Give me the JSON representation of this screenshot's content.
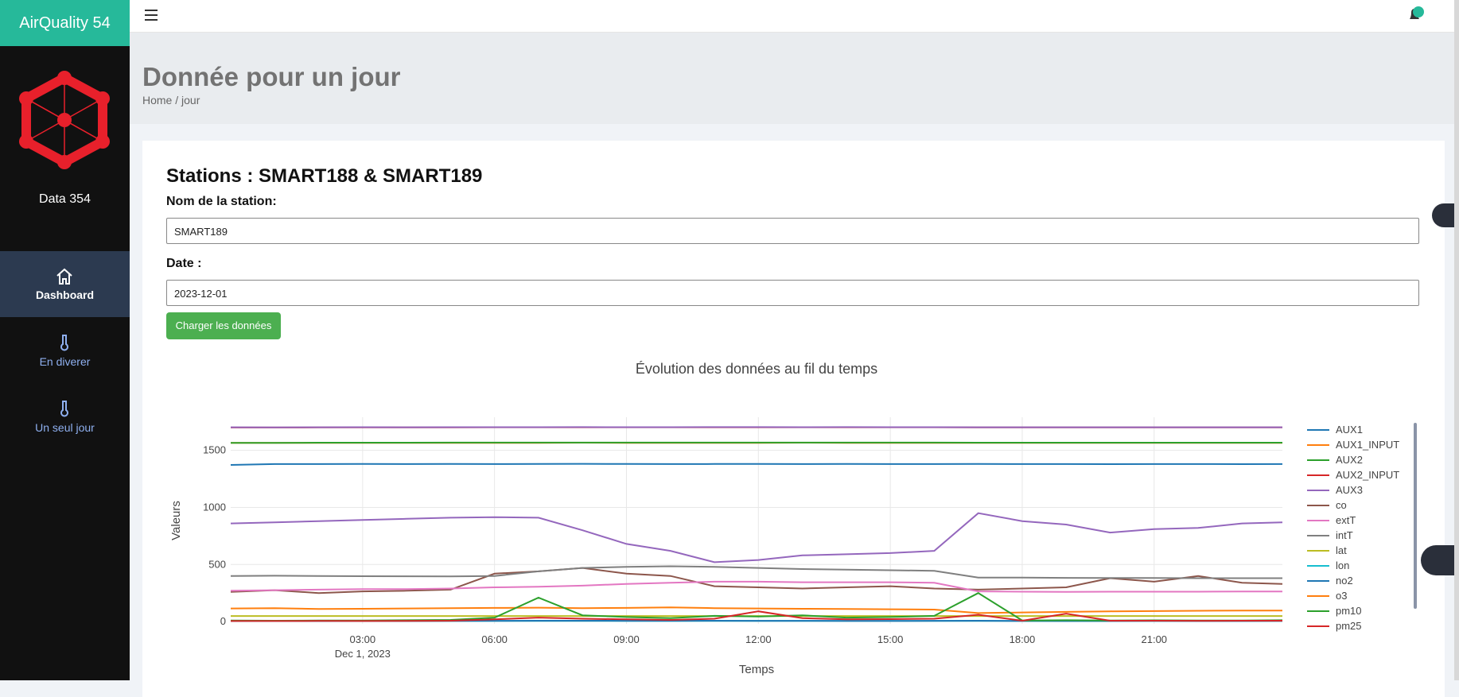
{
  "brand": "AirQuality 54",
  "sidebar": {
    "label": "Data 354",
    "nav": [
      "Dashboard",
      "En diverer",
      "Un seul jour"
    ]
  },
  "header": {
    "title": "Donnée pour un jour",
    "breadcrumb": "Home / jour"
  },
  "form": {
    "heading": "Stations : SMART188 & SMART189",
    "station_label": "Nom de la station:",
    "station_value": "SMART189",
    "date_label": "Date :",
    "date_value": "2023-12-01",
    "button": "Charger les données"
  },
  "chart_data": {
    "type": "line",
    "title": "Évolution des données au fil du temps",
    "x_label": "Temps",
    "y_label": "Valeurs",
    "grid": true,
    "legend": "right",
    "x": [
      "2023-12-01 00:00",
      "2023-12-01 01:00",
      "2023-12-01 02:00",
      "2023-12-01 03:00",
      "2023-12-01 04:00",
      "2023-12-01 05:00",
      "2023-12-01 06:00",
      "2023-12-01 07:00",
      "2023-12-01 08:00",
      "2023-12-01 09:00",
      "2023-12-01 10:00",
      "2023-12-01 11:00",
      "2023-12-01 12:00",
      "2023-12-01 13:00",
      "2023-12-01 14:00",
      "2023-12-01 15:00",
      "2023-12-01 16:00",
      "2023-12-01 17:00",
      "2023-12-01 18:00",
      "2023-12-01 19:00",
      "2023-12-01 20:00",
      "2023-12-01 21:00",
      "2023-12-01 22:00",
      "2023-12-01 23:00",
      "2023-12-01 23:55"
    ],
    "xlim": [
      "2023-12-01 00:00",
      "2023-12-01 23:55"
    ],
    "xticks": [
      {
        "value": "2023-12-01 03:00",
        "label": "03:00"
      },
      {
        "value": "2023-12-01 06:00",
        "label": "06:00"
      },
      {
        "value": "2023-12-01 09:00",
        "label": "09:00"
      },
      {
        "value": "2023-12-01 12:00",
        "label": "12:00"
      },
      {
        "value": "2023-12-01 15:00",
        "label": "15:00"
      },
      {
        "value": "2023-12-01 18:00",
        "label": "18:00"
      },
      {
        "value": "2023-12-01 21:00",
        "label": "21:00"
      }
    ],
    "xtick_date": "Dec 1, 2023",
    "ylim": [
      -20,
      1790
    ],
    "yticks": [
      0,
      500,
      1000,
      1500
    ],
    "series": [
      {
        "name": "AUX1",
        "color": "#1f77b4",
        "values": [
          1372,
          1380,
          1380,
          1381,
          1380,
          1381,
          1380,
          1381,
          1382,
          1381,
          1380,
          1381,
          1381,
          1380,
          1381,
          1380,
          1380,
          1381,
          1380,
          1380,
          1379,
          1380,
          1380,
          1379,
          1380
        ]
      },
      {
        "name": "AUX1_INPUT",
        "color": "#ff7f0e",
        "values": [
          1565,
          1565,
          1566,
          1566,
          1565,
          1566,
          1566,
          1566,
          1567,
          1566,
          1566,
          1566,
          1566,
          1567,
          1566,
          1566,
          1566,
          1566,
          1565,
          1566,
          1566,
          1565,
          1566,
          1566,
          1565
        ]
      },
      {
        "name": "AUX2",
        "color": "#2ca02c",
        "values": [
          1566,
          1566,
          1567,
          1567,
          1567,
          1568,
          1568,
          1568,
          1568,
          1568,
          1568,
          1568,
          1568,
          1568,
          1568,
          1568,
          1568,
          1567,
          1567,
          1567,
          1567,
          1567,
          1567,
          1567,
          1567
        ]
      },
      {
        "name": "AUX2_INPUT",
        "color": "#d62728",
        "values": [
          1700,
          1700,
          1701,
          1701,
          1701,
          1701,
          1702,
          1702,
          1702,
          1702,
          1702,
          1702,
          1702,
          1702,
          1702,
          1702,
          1702,
          1701,
          1701,
          1701,
          1701,
          1701,
          1701,
          1701,
          1701
        ]
      },
      {
        "name": "AUX3",
        "color": "#9467bd",
        "values": [
          1702,
          1701,
          1702,
          1703,
          1702,
          1703,
          1703,
          1703,
          1704,
          1703,
          1703,
          1704,
          1704,
          1703,
          1704,
          1703,
          1703,
          1702,
          1702,
          1702,
          1702,
          1702,
          1702,
          1702,
          1702
        ]
      },
      {
        "name": "co",
        "color": "#8c564b",
        "values": [
          260,
          275,
          250,
          265,
          270,
          280,
          420,
          440,
          470,
          420,
          400,
          310,
          300,
          290,
          300,
          310,
          290,
          280,
          290,
          300,
          380,
          350,
          400,
          340,
          330
        ]
      },
      {
        "name": "extT",
        "color": "#e377c2",
        "values": [
          270,
          275,
          280,
          285,
          285,
          290,
          300,
          305,
          315,
          330,
          340,
          350,
          350,
          345,
          345,
          345,
          340,
          265,
          262,
          260,
          262,
          262,
          262,
          263,
          264
        ]
      },
      {
        "name": "intT",
        "color": "#7f7f7f",
        "values": [
          400,
          402,
          400,
          398,
          397,
          396,
          400,
          440,
          470,
          480,
          485,
          480,
          470,
          460,
          455,
          450,
          445,
          385,
          385,
          383,
          382,
          382,
          380,
          380,
          380
        ]
      },
      {
        "name": "lat",
        "color": "#bcbd22",
        "values": [
          49,
          49,
          49,
          49,
          49,
          49,
          49,
          49,
          49,
          49,
          49,
          49,
          49,
          49,
          49,
          49,
          49,
          49,
          49,
          49,
          49,
          49,
          49,
          49,
          49
        ]
      },
      {
        "name": "lon",
        "color": "#17becf",
        "values": [
          6,
          6,
          6,
          6,
          6,
          6,
          6,
          6,
          6,
          6,
          6,
          6,
          6,
          6,
          6,
          6,
          6,
          6,
          6,
          6,
          6,
          6,
          6,
          6,
          6
        ]
      },
      {
        "name": "no2",
        "color": "#1f77b4",
        "values": [
          5,
          6,
          5,
          6,
          5,
          6,
          7,
          8,
          8,
          7,
          7,
          8,
          7,
          7,
          6,
          6,
          7,
          8,
          6,
          5,
          5,
          6,
          5,
          5,
          6
        ]
      },
      {
        "name": "o3",
        "color": "#ff7f0e",
        "values": [
          115,
          118,
          110,
          112,
          115,
          118,
          120,
          122,
          118,
          120,
          125,
          118,
          115,
          112,
          110,
          108,
          105,
          75,
          80,
          85,
          90,
          92,
          95,
          96,
          97
        ]
      },
      {
        "name": "pm10",
        "color": "#2ca02c",
        "values": [
          10,
          8,
          9,
          10,
          12,
          15,
          35,
          210,
          55,
          40,
          30,
          50,
          45,
          55,
          35,
          40,
          50,
          250,
          10,
          12,
          10,
          11,
          10,
          10,
          12
        ]
      },
      {
        "name": "pm25",
        "color": "#d62728",
        "values": [
          5,
          5,
          6,
          5,
          6,
          8,
          20,
          35,
          25,
          20,
          15,
          25,
          90,
          30,
          20,
          22,
          25,
          60,
          8,
          70,
          8,
          8,
          7,
          8,
          8
        ]
      },
      {
        "color": "#9467bd",
        "values": [
          860,
          870,
          880,
          890,
          900,
          910,
          915,
          910,
          800,
          680,
          620,
          520,
          540,
          580,
          590,
          600,
          620,
          950,
          880,
          850,
          780,
          810,
          820,
          860,
          870
        ]
      }
    ]
  }
}
